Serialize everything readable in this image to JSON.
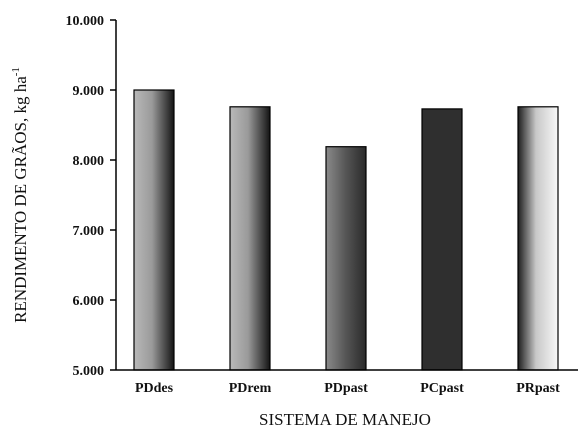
{
  "chart_data": {
    "type": "bar",
    "categories": [
      "PDdes",
      "PDrem",
      "PDpast",
      "PCpast",
      "PRpast"
    ],
    "values": [
      9000,
      8760,
      8190,
      8730,
      8760
    ],
    "xlabel": "SISTEMA DE MANEJO",
    "ylabel": "RENDIMENTO DE GRÃOS, kg ha",
    "ylabel_superscript": "-1",
    "ylim": [
      5000,
      10000
    ],
    "yticks": [
      5000,
      6000,
      7000,
      8000,
      9000,
      10000
    ],
    "ytick_labels": [
      "5.000",
      "6.000",
      "7.000",
      "8.000",
      "9.000",
      "10.000"
    ],
    "grid": false,
    "legend": "none",
    "bar_fills": [
      "gradient-light-left",
      "gradient-light-left",
      "gradient-dark",
      "solid-dark",
      "gradient-light-right"
    ]
  }
}
